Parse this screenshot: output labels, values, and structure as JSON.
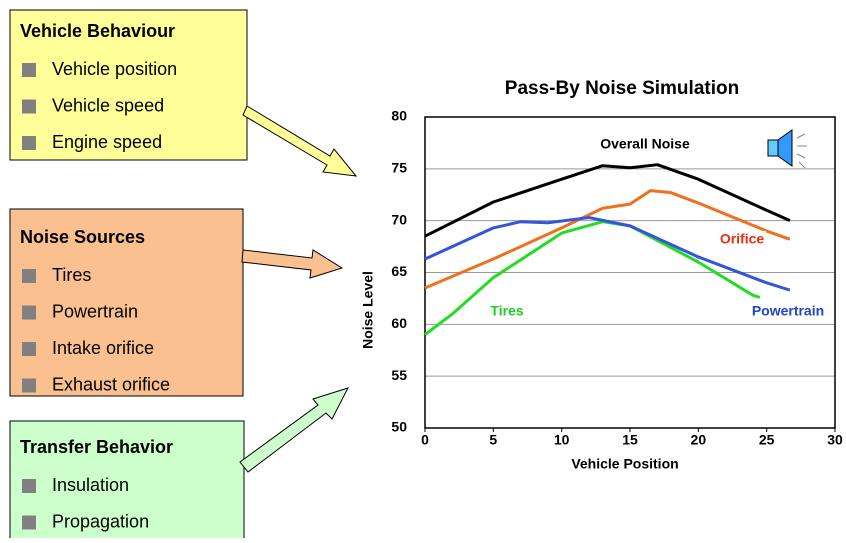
{
  "boxes": [
    {
      "title": "Vehicle Behaviour",
      "items": [
        "Vehicle position",
        "Vehicle speed",
        "Engine speed"
      ]
    },
    {
      "title": "Noise Sources",
      "items": [
        "Tires",
        "Powertrain",
        "Intake orifice",
        "Exhaust orifice"
      ]
    },
    {
      "title": "Transfer Behavior",
      "items": [
        "Insulation",
        "Propagation"
      ]
    }
  ],
  "chart_data": {
    "type": "line",
    "title": "Pass-By Noise Simulation",
    "xlabel": "Vehicle Position",
    "ylabel": "Noise Level",
    "xlim": [
      0,
      30
    ],
    "xticks": [
      0,
      5,
      10,
      15,
      20,
      25,
      30
    ],
    "ylim": [
      50,
      80
    ],
    "yticks": [
      50,
      55,
      60,
      65,
      70,
      75,
      80
    ],
    "grid": true,
    "series": [
      {
        "name": "Overall Noise",
        "color": "#000000",
        "label_color": "#000000",
        "x": [
          0,
          5,
          10,
          13,
          15,
          17,
          20,
          25,
          26.7
        ],
        "values": [
          68.5,
          71.8,
          74,
          75.3,
          75.1,
          75.4,
          74,
          71,
          70
        ]
      },
      {
        "name": "Orifice",
        "color": "#f07020",
        "label_color": "#e83010",
        "x": [
          0,
          5,
          10,
          13,
          15,
          16.5,
          18,
          20,
          25,
          26.7
        ],
        "values": [
          63.5,
          66.3,
          69.3,
          71.2,
          71.6,
          72.9,
          72.7,
          71.7,
          69,
          68.2
        ]
      },
      {
        "name": "Tires",
        "color": "#22dd22",
        "label_color": "#22cc22",
        "x": [
          0,
          2,
          5,
          10,
          13,
          15,
          20,
          24,
          24.5
        ],
        "values": [
          59,
          61,
          64.5,
          68.8,
          69.9,
          69.5,
          66,
          62.8,
          62.6
        ]
      },
      {
        "name": "Powertrain",
        "color": "#3355dd",
        "label_color": "#2244cc",
        "x": [
          0,
          5,
          7,
          9,
          12,
          15,
          20,
          25,
          26.7
        ],
        "values": [
          66.3,
          69.3,
          69.9,
          69.8,
          70.3,
          69.5,
          66.5,
          64,
          63.3
        ]
      }
    ]
  }
}
